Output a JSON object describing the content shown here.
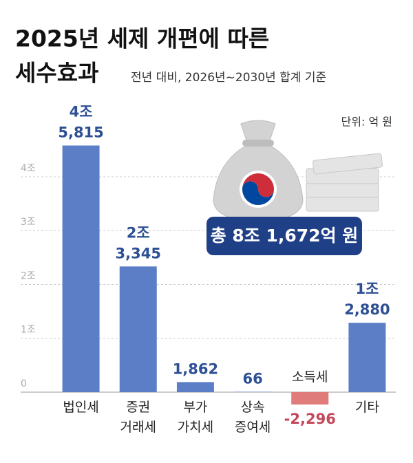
{
  "chart_data": {
    "type": "bar",
    "title": "2025년 세제 개편에 따른",
    "title_line2": "세수효과",
    "subtitle": "전년 대비, 2026년~2030년 합계 기준",
    "unit_label": "단위: 억 원",
    "total_label": "총 8조 1,672억 원",
    "categories": [
      "법인세",
      "증권\n거래세",
      "부가\n가치세",
      "상속\n증여세",
      "소득세",
      "기타"
    ],
    "values": [
      45815,
      23345,
      1862,
      66,
      -2296,
      12880
    ],
    "value_labels": [
      "4조\n5,815",
      "2조\n3,345",
      "1,862",
      "66",
      "-2,296",
      "1조\n2,880"
    ],
    "color": "#5b7ec7",
    "negative_color": "#e07b7b",
    "ylim": [
      -5000,
      50000
    ],
    "yticks": [
      {
        "value": 0,
        "label": "0"
      },
      {
        "value": 10000,
        "label": "1조"
      },
      {
        "value": 20000,
        "label": "2조"
      },
      {
        "value": 30000,
        "label": "3조"
      },
      {
        "value": 40000,
        "label": "4조"
      }
    ],
    "grid": true
  }
}
